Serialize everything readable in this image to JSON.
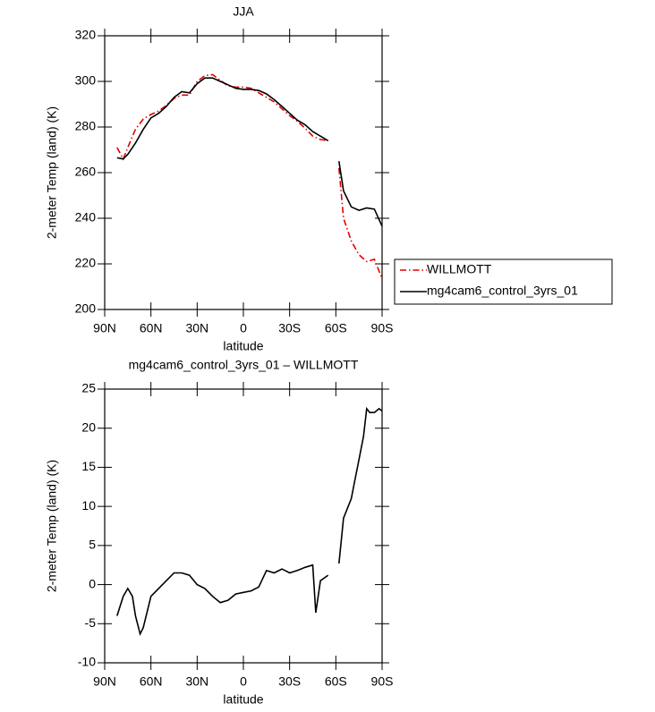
{
  "chart_data": [
    {
      "type": "line",
      "title": "JJA",
      "xlabel": "latitude",
      "ylabel": "2-meter Temp (land) (K)",
      "x": [
        82,
        78,
        75,
        70,
        65,
        60,
        55,
        50,
        45,
        40,
        35,
        30,
        25,
        20,
        15,
        10,
        5,
        0,
        -5,
        -10,
        -15,
        -20,
        -25,
        -30,
        -35,
        -40,
        -45,
        -50,
        -55,
        -60,
        -62,
        -65,
        -70,
        -75,
        -80,
        -85,
        -90
      ],
      "series": [
        {
          "name": "WILLMOTT",
          "color": "#e00000",
          "dash": true,
          "values": [
            271,
            266,
            271,
            279,
            283.5,
            285.5,
            287,
            289.5,
            292.5,
            294,
            294,
            300,
            302.5,
            303,
            300.5,
            298,
            297.5,
            297.5,
            297,
            295,
            293,
            291,
            288,
            285,
            282.5,
            279.5,
            276,
            274.5,
            274,
            null,
            262,
            240,
            230,
            224,
            221,
            222,
            213.5
          ]
        },
        {
          "name": "mg4cam6_control_3yrs_01",
          "color": "#000000",
          "dash": false,
          "values": [
            266.5,
            266,
            268,
            273,
            279,
            284,
            286,
            289,
            293,
            295.5,
            295,
            299,
            301.5,
            301.5,
            300,
            298.5,
            297,
            296.5,
            296.5,
            296,
            294.5,
            292,
            289,
            286,
            283,
            281,
            278,
            276,
            274,
            null,
            265,
            252,
            245,
            243.5,
            244.5,
            244,
            236.5
          ]
        }
      ],
      "xlim": [
        90,
        -90
      ],
      "xticks": [
        {
          "value": 90,
          "label": "90N"
        },
        {
          "value": 60,
          "label": "60N"
        },
        {
          "value": 30,
          "label": "30N"
        },
        0,
        {
          "value": -30,
          "label": "30S"
        },
        {
          "value": -60,
          "label": "60S"
        },
        {
          "value": -90,
          "label": "90S"
        }
      ],
      "ylim": [
        200,
        320
      ],
      "yticks": [
        200,
        220,
        240,
        260,
        280,
        300,
        320
      ],
      "legend": "right"
    },
    {
      "type": "line",
      "title": "mg4cam6_control_3yrs_01 – WILLMOTT",
      "xlabel": "latitude",
      "ylabel": "2-meter Temp (land) (K)",
      "x": [
        82,
        78,
        75,
        72,
        70,
        67,
        65,
        60,
        55,
        50,
        45,
        40,
        35,
        30,
        25,
        20,
        15,
        10,
        5,
        0,
        -5,
        -10,
        -15,
        -20,
        -25,
        -30,
        -35,
        -40,
        -45,
        -47,
        -50,
        -55,
        -60,
        -62,
        -65,
        -70,
        -72,
        -75,
        -78,
        -80,
        -82,
        -85,
        -88,
        -90
      ],
      "values": [
        -4,
        -1.5,
        -0.5,
        -1.5,
        -4,
        -6.3,
        -5.5,
        -1.5,
        -0.5,
        0.5,
        1.5,
        1.5,
        1.2,
        0,
        -0.5,
        -1.5,
        -2.3,
        -2,
        -1.2,
        -1,
        -0.8,
        -0.3,
        1.8,
        1.5,
        2,
        1.5,
        1.8,
        2.2,
        2.5,
        -3.6,
        0.5,
        1.2,
        null,
        2.7,
        8.5,
        11,
        13,
        16,
        19,
        22.5,
        22,
        22,
        22.5,
        22.2
      ],
      "color": "#000000",
      "xlim": [
        90,
        -90
      ],
      "xticks": [
        {
          "value": 90,
          "label": "90N"
        },
        {
          "value": 60,
          "label": "60N"
        },
        {
          "value": 30,
          "label": "30N"
        },
        0,
        {
          "value": -30,
          "label": "30S"
        },
        {
          "value": -60,
          "label": "60S"
        },
        {
          "value": -90,
          "label": "90S"
        }
      ],
      "ylim": [
        -10,
        25
      ],
      "yticks": [
        -10,
        -5,
        0,
        5,
        10,
        15,
        20,
        25
      ]
    }
  ]
}
